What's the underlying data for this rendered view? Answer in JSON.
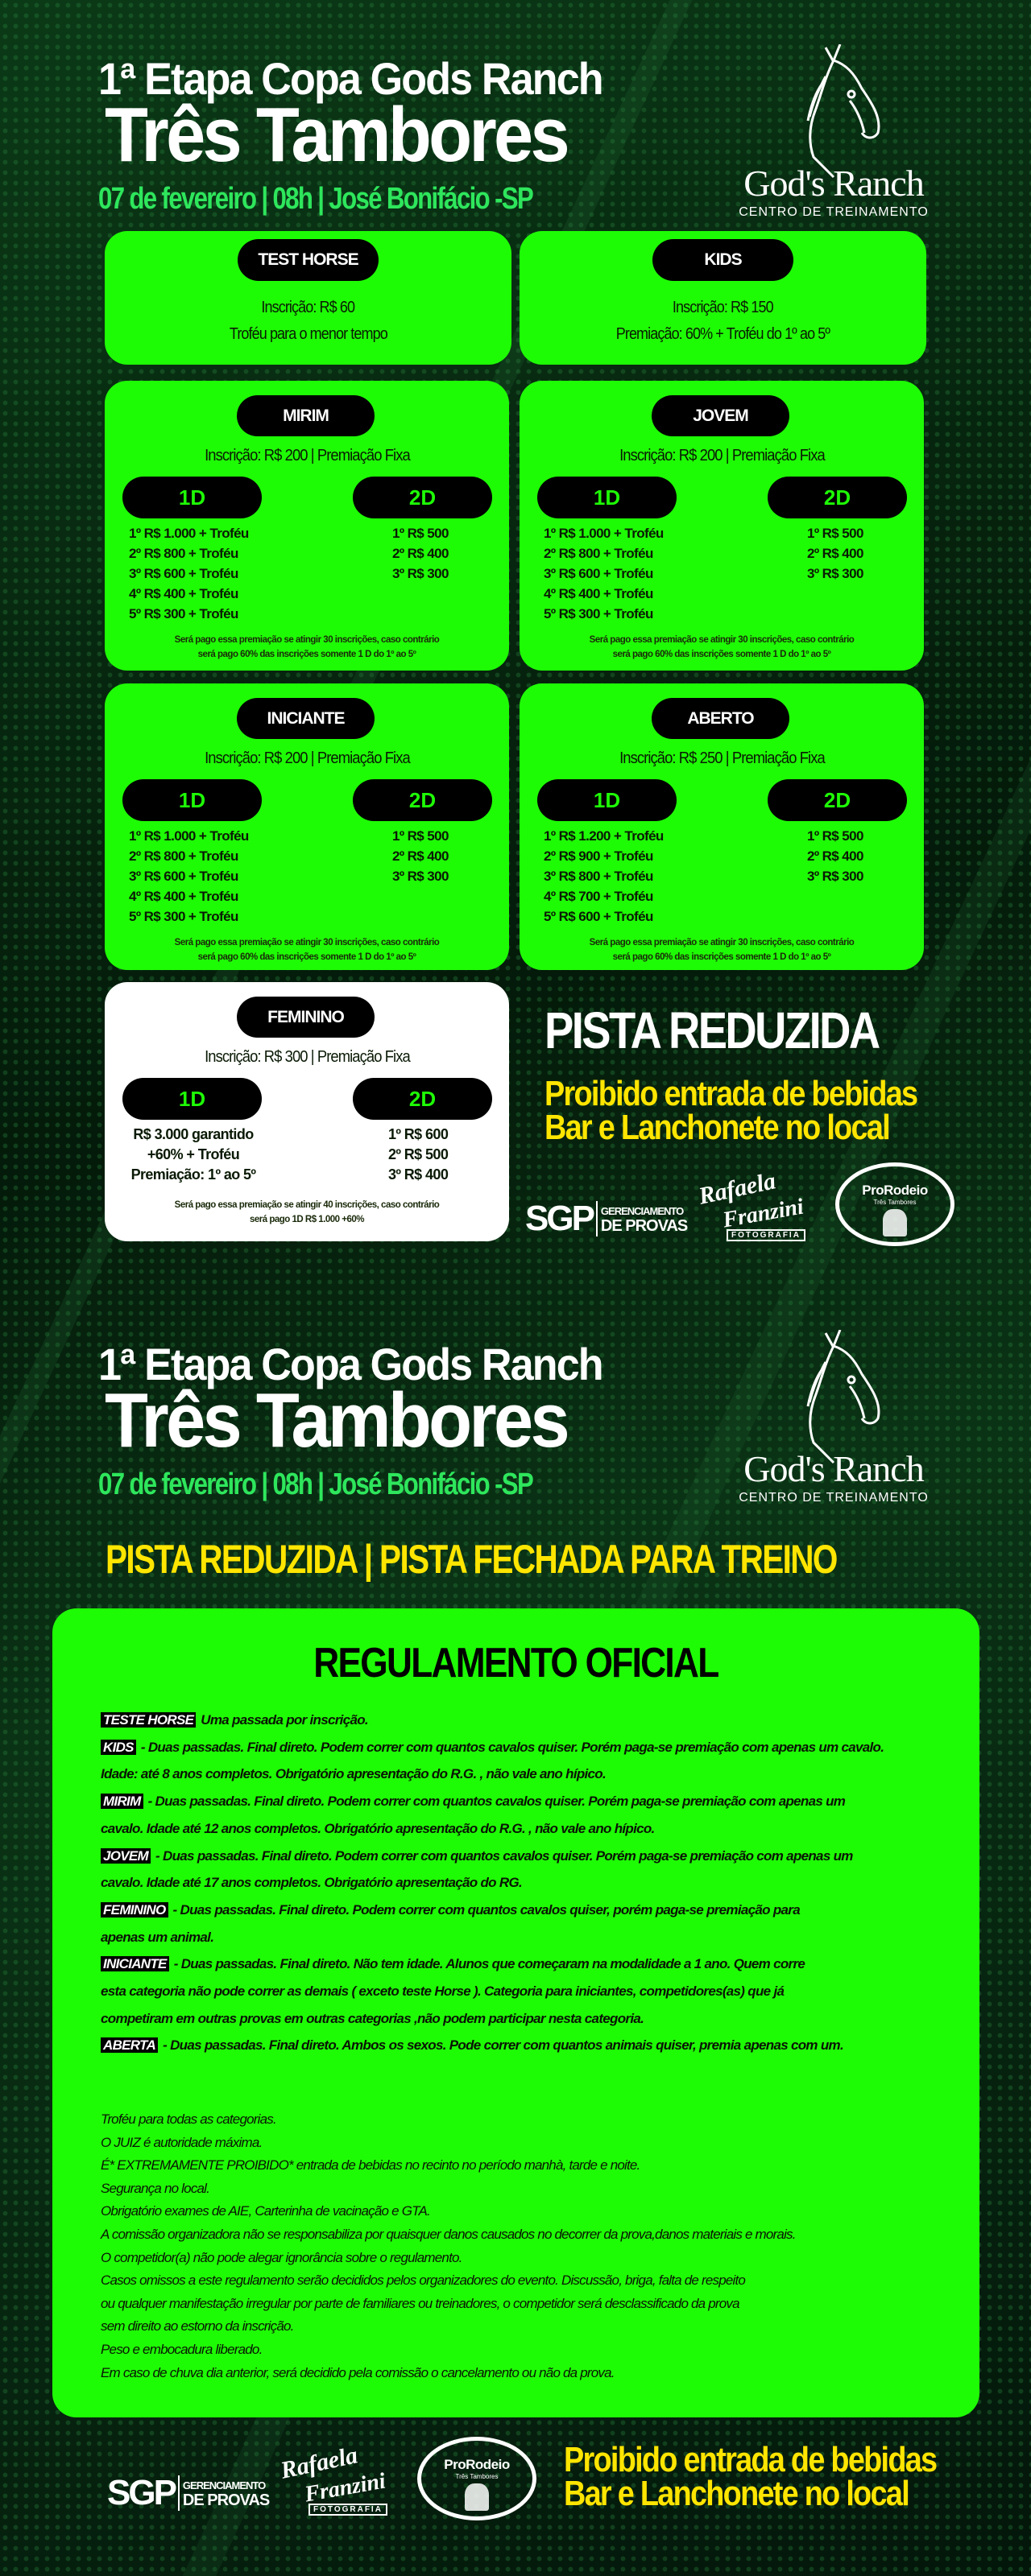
{
  "header": {
    "title_line1": "1ª Etapa Copa Gods Ranch",
    "title_line2": "Três Tambores",
    "details": "07 de fevereiro | 08h  | José Bonifácio -SP",
    "logo_name": "God's Ranch",
    "logo_subtitle": "CENTRO DE TREINAMENTO"
  },
  "simple_cards": [
    {
      "name": "TEST HORSE",
      "lines": [
        "Inscrição: R$ 60",
        "Troféu para o menor tempo"
      ]
    },
    {
      "name": "KIDS",
      "lines": [
        "Inscrição: R$ 150",
        "Premiação: 60% + Troféu do 1º ao 5º"
      ]
    }
  ],
  "categories": [
    {
      "name": "MIRIM",
      "inscricao": "Inscrição: R$ 200 | Premiação Fixa",
      "d1_label": "1D",
      "d2_label": "2D",
      "d1": [
        "1º  R$ 1.000 + Troféu",
        "2º  R$ 800 + Troféu",
        "3º  R$ 600 + Troféu",
        "4º  R$ 400 + Troféu",
        "5º  R$ 300 + Troféu"
      ],
      "d2": [
        "1º  R$ 500",
        "2º  R$ 400",
        "3º  R$ 300"
      ],
      "note": [
        "Será pago essa premiação se atingir 30 inscrições, caso contrário",
        "será pago 60% das inscrições somente 1 D  do 1º ao 5º"
      ]
    },
    {
      "name": "JOVEM",
      "inscricao": "Inscrição: R$ 200 | Premiação Fixa",
      "d1_label": "1D",
      "d2_label": "2D",
      "d1": [
        "1º  R$ 1.000 + Troféu",
        "2º  R$ 800 + Troféu",
        "3º  R$ 600 + Troféu",
        "4º  R$ 400 + Troféu",
        "5º  R$ 300 + Troféu"
      ],
      "d2": [
        "1º  R$ 500",
        "2º  R$ 400",
        "3º  R$ 300"
      ],
      "note": [
        "Será pago essa premiação se atingir 30 inscrições, caso contrário",
        "será pago 60% das inscrições somente 1 D  do 1º ao 5º"
      ]
    },
    {
      "name": "INICIANTE",
      "inscricao": "Inscrição: R$ 200 | Premiação Fixa",
      "d1_label": "1D",
      "d2_label": "2D",
      "d1": [
        "1º  R$ 1.000 + Troféu",
        "2º  R$ 800 + Troféu",
        "3º  R$ 600 + Troféu",
        "4º  R$ 400 + Troféu",
        "5º  R$ 300 + Troféu"
      ],
      "d2": [
        "1º  R$ 500",
        "2º  R$ 400",
        "3º  R$ 300"
      ],
      "note": [
        "Será pago essa premiação se atingir 30 inscrições, caso contrário",
        "será pago 60% das inscrições somente 1 D  do 1º ao 5º"
      ]
    },
    {
      "name": "ABERTO",
      "inscricao": "Inscrição: R$ 250 | Premiação Fixa",
      "d1_label": "1D",
      "d2_label": "2D",
      "d1": [
        "1º  R$ 1.200 + Troféu",
        "2º  R$ 900 + Troféu",
        "3º  R$ 800 + Troféu",
        "4º  R$ 700 + Troféu",
        "5º  R$ 600 + Troféu"
      ],
      "d2": [
        "1º  R$ 500",
        "2º  R$ 400",
        "3º  R$ 300"
      ],
      "note": [
        "Será pago essa premiação se atingir 30 inscrições, caso contrário",
        "será pago 60% das inscrições somente 1 D  do 1º ao 5º"
      ]
    }
  ],
  "feminino": {
    "name": "FEMININO",
    "inscricao": "Inscrição: R$ 300 | Premiação Fixa",
    "d1_label": "1D",
    "d2_label": "2D",
    "d1": [
      "R$ 3.000 garantido",
      "+60% + Troféu",
      "Premiação: 1º ao 5º"
    ],
    "d2": [
      "1º  R$ 600",
      "2º  R$ 500",
      "3º  R$ 400"
    ],
    "note": [
      "Será pago essa premiação se atingir 40 inscrições, caso contrário",
      "será pago 1D R$ 1.000 +60%"
    ]
  },
  "side": {
    "pista": "PISTA REDUZIDA",
    "warn1": "Proibido entrada de bebidas",
    "warn2": "Bar e Lanchonete no local"
  },
  "sponsors": {
    "sgp": "SGP",
    "sgp_line1": "GERENCIAMENTO",
    "sgp_line2": "DE PROVAS",
    "rafaela1": "Rafaela",
    "rafaela2": "Franzini",
    "rafaela3": "FOTOGRAFIA",
    "prorodeio": "ProRodeio",
    "prorodeio_sub": "Três Tambores"
  },
  "section2": {
    "banner": "PISTA REDUZIDA | PISTA FECHADA PARA TREINO",
    "reg_title": "REGULAMENTO OFICIAL",
    "rules": [
      {
        "tag": "TESTE HORSE",
        "lines": [
          " Uma passada por inscrição."
        ]
      },
      {
        "tag": "KIDS",
        "lines": [
          " - Duas passadas. Final direto. Podem correr com quantos cavalos quiser. Porém paga-se premiação com apenas um cavalo.",
          "Idade: até 8 anos completos. Obrigatório apresentação do R.G. , não vale ano hípico."
        ]
      },
      {
        "tag": "MIRIM",
        "lines": [
          " - Duas passadas. Final direto. Podem correr com quantos cavalos quiser. Porém paga-se premiação com apenas um",
          "cavalo. Idade até 12 anos completos. Obrigatório apresentação do R.G. , não vale ano hípico."
        ]
      },
      {
        "tag": "JOVEM",
        "lines": [
          " - Duas passadas. Final direto. Podem correr com quantos cavalos quiser. Porém paga-se premiação com apenas um",
          "cavalo. Idade até 17 anos completos. Obrigatório apresentação do RG."
        ]
      },
      {
        "tag": "FEMININO",
        "lines": [
          " - Duas passadas. Final direto. Podem correr com quantos cavalos quiser, porém paga-se premiação para",
          "apenas um animal."
        ]
      },
      {
        "tag": "INICIANTE",
        "lines": [
          " - Duas passadas. Final direto. Não tem idade. Alunos que começaram na modalidade a 1 ano. Quem corre",
          "esta categoria não pode correr as demais ( exceto teste Horse ). Categoria para iniciantes, competidores(as) que já",
          "competiram em outras provas em outras categorias ,não podem participar nesta categoria."
        ]
      },
      {
        "tag": "ABERTA",
        "lines": [
          " - Duas passadas. Final direto. Ambos os sexos. Pode correr com quantos animais quiser, premia apenas com um."
        ]
      }
    ],
    "notes": [
      "Troféu para todas as categorias.",
      "O JUIZ é autoridade máxima.",
      "É* EXTREMAMENTE PROIBIDO* entrada de bebidas no recinto no período manhà, tarde e noite.",
      "Segurança no local.",
      "Obrigatório exames de AIE, Carterinha de vacinação e GTA.",
      "A comissão organizadora não se responsabiliza por quaisquer danos causados no decorrer da prova,danos materiais e morais.",
      "O competidor(a) não pode alegar ignorância sobre o regulamento.",
      "Casos omissos a este regulamento serão decididos pelos organizadores do evento. Discussão, briga, falta de respeito",
      "ou qualquer manifestação irregular por parte de familiares ou treinadores, o competidor será desclassificado da prova",
      "sem direito ao estorno da inscrição.",
      "Peso e embocadura liberado.",
      "Em caso de chuva dia anterior, será decidido pela comissão o cancelamento ou não da prova."
    ]
  },
  "colors": {
    "card_green": "#1efc05",
    "date_green": "#2ee65c",
    "yellow": "#ffe500",
    "background": "#05200d"
  }
}
